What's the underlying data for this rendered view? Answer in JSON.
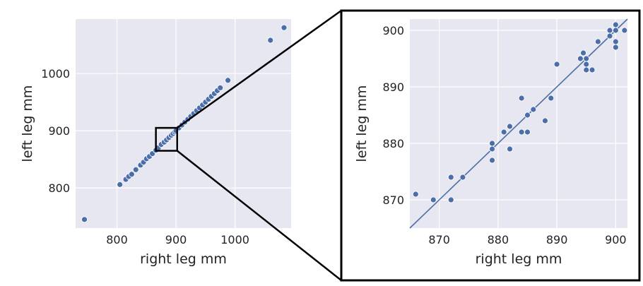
{
  "figure": {
    "plot_bg": "#e6e7f0",
    "grid_color": "#ffffff",
    "point_color": "#4c6ea8",
    "line_color": "#4c6ea8",
    "frame_color": "#000000"
  },
  "chart_data": [
    {
      "type": "scatter",
      "panel": "overview",
      "xlabel": "right leg mm",
      "ylabel": "left leg mm",
      "xlim": [
        730,
        1095
      ],
      "ylim": [
        730,
        1095
      ],
      "xticks": [
        800,
        900,
        1000
      ],
      "yticks": [
        800,
        900,
        1000
      ],
      "grid": true,
      "zoom_box": {
        "x": [
          866,
          902
        ],
        "y": [
          865,
          905
        ]
      },
      "series": [
        {
          "points": [
            [
              745,
              745
            ],
            [
              805,
              806
            ],
            [
              815,
              815
            ],
            [
              820,
              820
            ],
            [
              825,
              824
            ],
            [
              832,
              832
            ],
            [
              840,
              840
            ],
            [
              845,
              845
            ],
            [
              850,
              851
            ],
            [
              855,
              855
            ],
            [
              860,
              860
            ],
            [
              866,
              866
            ],
            [
              870,
              870
            ],
            [
              875,
              876
            ],
            [
              880,
              880
            ],
            [
              884,
              884
            ],
            [
              888,
              888
            ],
            [
              892,
              892
            ],
            [
              895,
              895
            ],
            [
              898,
              898
            ],
            [
              900,
              900
            ],
            [
              905,
              905
            ],
            [
              910,
              910
            ],
            [
              915,
              915
            ],
            [
              920,
              920
            ],
            [
              925,
              925
            ],
            [
              930,
              930
            ],
            [
              935,
              935
            ],
            [
              940,
              940
            ],
            [
              945,
              945
            ],
            [
              950,
              950
            ],
            [
              955,
              955
            ],
            [
              960,
              960
            ],
            [
              965,
              965
            ],
            [
              970,
              970
            ],
            [
              975,
              975
            ],
            [
              988,
              988
            ],
            [
              1060,
              1058
            ],
            [
              1083,
              1080
            ]
          ]
        }
      ]
    },
    {
      "type": "scatter",
      "panel": "zoom",
      "xlabel": "right leg mm",
      "ylabel": "left leg mm",
      "xlim": [
        865,
        902
      ],
      "ylim": [
        865,
        902
      ],
      "xticks": [
        870,
        880,
        890,
        900
      ],
      "yticks": [
        870,
        880,
        890,
        900
      ],
      "grid": true,
      "fit_line": {
        "x": [
          865,
          902
        ],
        "y": [
          865,
          902
        ]
      },
      "series": [
        {
          "points": [
            [
              866,
              871
            ],
            [
              869,
              870
            ],
            [
              872,
              870
            ],
            [
              872,
              874
            ],
            [
              874,
              874
            ],
            [
              879,
              877
            ],
            [
              879,
              879
            ],
            [
              879,
              880
            ],
            [
              881,
              882
            ],
            [
              882,
              879
            ],
            [
              882,
              883
            ],
            [
              884,
              882
            ],
            [
              884,
              888
            ],
            [
              885,
              882
            ],
            [
              885,
              885
            ],
            [
              886,
              886
            ],
            [
              888,
              884
            ],
            [
              889,
              888
            ],
            [
              890,
              894
            ],
            [
              894,
              895
            ],
            [
              894.5,
              896
            ],
            [
              895,
              893
            ],
            [
              895,
              894
            ],
            [
              895,
              895
            ],
            [
              896,
              893
            ],
            [
              897,
              898
            ],
            [
              899,
              899
            ],
            [
              899,
              900
            ],
            [
              900,
              897
            ],
            [
              900,
              898
            ],
            [
              900,
              900
            ],
            [
              900,
              901
            ],
            [
              901.5,
              900
            ]
          ]
        }
      ]
    }
  ]
}
